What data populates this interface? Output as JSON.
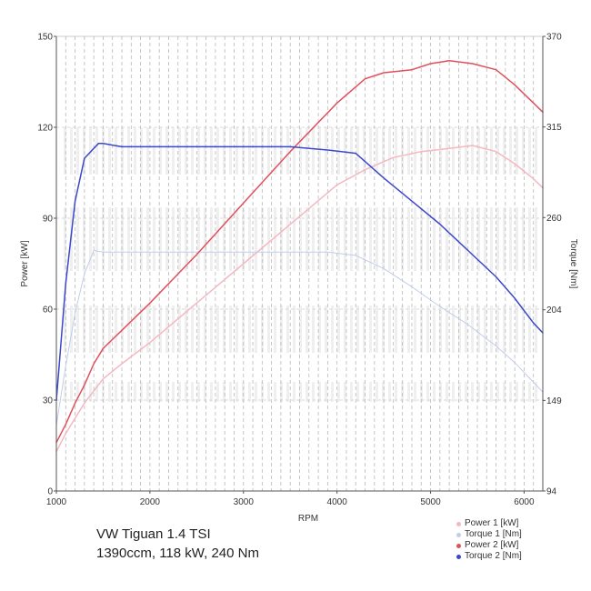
{
  "chart_data": {
    "type": "line",
    "xlabel": "RPM",
    "ylabel_left": "Power [kW]",
    "ylabel_right": "Torque [Nm]",
    "xlim": [
      1000,
      6200
    ],
    "ylim_left": [
      0,
      150
    ],
    "ylim_right": [
      94,
      370
    ],
    "x_ticks": [
      "1000",
      "2000",
      "3000",
      "4000",
      "5000",
      "6000"
    ],
    "y_ticks_left": [
      "0",
      "30",
      "60",
      "90",
      "120",
      "150"
    ],
    "y_ticks_right": [
      "94",
      "149",
      "204",
      "260",
      "315",
      "370"
    ],
    "grid": true,
    "legend_position": "bottom-right",
    "series": [
      {
        "name": "Power 1 [kW]",
        "axis": "left",
        "color": "#f4b8c0",
        "width": 1.5,
        "x": [
          1000,
          1100,
          1200,
          1300,
          1400,
          1500,
          1700,
          2000,
          2500,
          3000,
          3500,
          4000,
          4300,
          4600,
          4900,
          5200,
          5450,
          5700,
          5900,
          6100,
          6200
        ],
        "y": [
          13,
          19,
          24,
          29,
          33,
          37,
          42,
          49,
          62,
          75,
          88,
          101,
          106,
          110,
          112,
          113,
          114,
          112,
          108,
          103,
          100
        ]
      },
      {
        "name": "Torque 1 [Nm]",
        "axis": "right",
        "color": "#c0cdea",
        "width": 1,
        "x": [
          1000,
          1100,
          1200,
          1300,
          1400,
          1500,
          1700,
          2000,
          2500,
          3000,
          3500,
          3900,
          4200,
          4500,
          4800,
          5100,
          5400,
          5700,
          5900,
          6100,
          6200
        ],
        "y": [
          134,
          170,
          202,
          226,
          240,
          239,
          239,
          239,
          239,
          239,
          239,
          239,
          237,
          229,
          218,
          206,
          195,
          182,
          172,
          160,
          154
        ]
      },
      {
        "name": "Power 2 [kW]",
        "axis": "left",
        "color": "#e0505c",
        "width": 1.5,
        "x": [
          1000,
          1100,
          1200,
          1300,
          1400,
          1500,
          1700,
          2000,
          2500,
          3000,
          3500,
          4000,
          4300,
          4500,
          4800,
          5000,
          5200,
          5450,
          5700,
          5900,
          6100,
          6200
        ],
        "y": [
          16,
          22,
          29,
          35,
          42,
          47,
          53,
          62,
          78,
          95,
          112,
          128,
          136,
          138,
          139,
          141,
          142,
          141,
          139,
          134,
          128,
          125
        ]
      },
      {
        "name": "Torque 2 [Nm]",
        "axis": "right",
        "color": "#3a46cc",
        "width": 1.5,
        "x": [
          1000,
          1100,
          1200,
          1300,
          1400,
          1450,
          1500,
          1700,
          2000,
          2500,
          3000,
          3500,
          3900,
          4200,
          4500,
          4800,
          5100,
          5400,
          5700,
          5900,
          6100,
          6200
        ],
        "y": [
          149,
          220,
          270,
          296,
          302,
          305,
          305,
          303,
          303,
          303,
          303,
          303,
          301,
          299,
          284,
          270,
          256,
          240,
          224,
          211,
          196,
          190
        ]
      }
    ]
  },
  "caption": {
    "line1": "VW Tiguan 1.4 TSI",
    "line2": "1390ccm, 118 kW, 240 Nm"
  }
}
